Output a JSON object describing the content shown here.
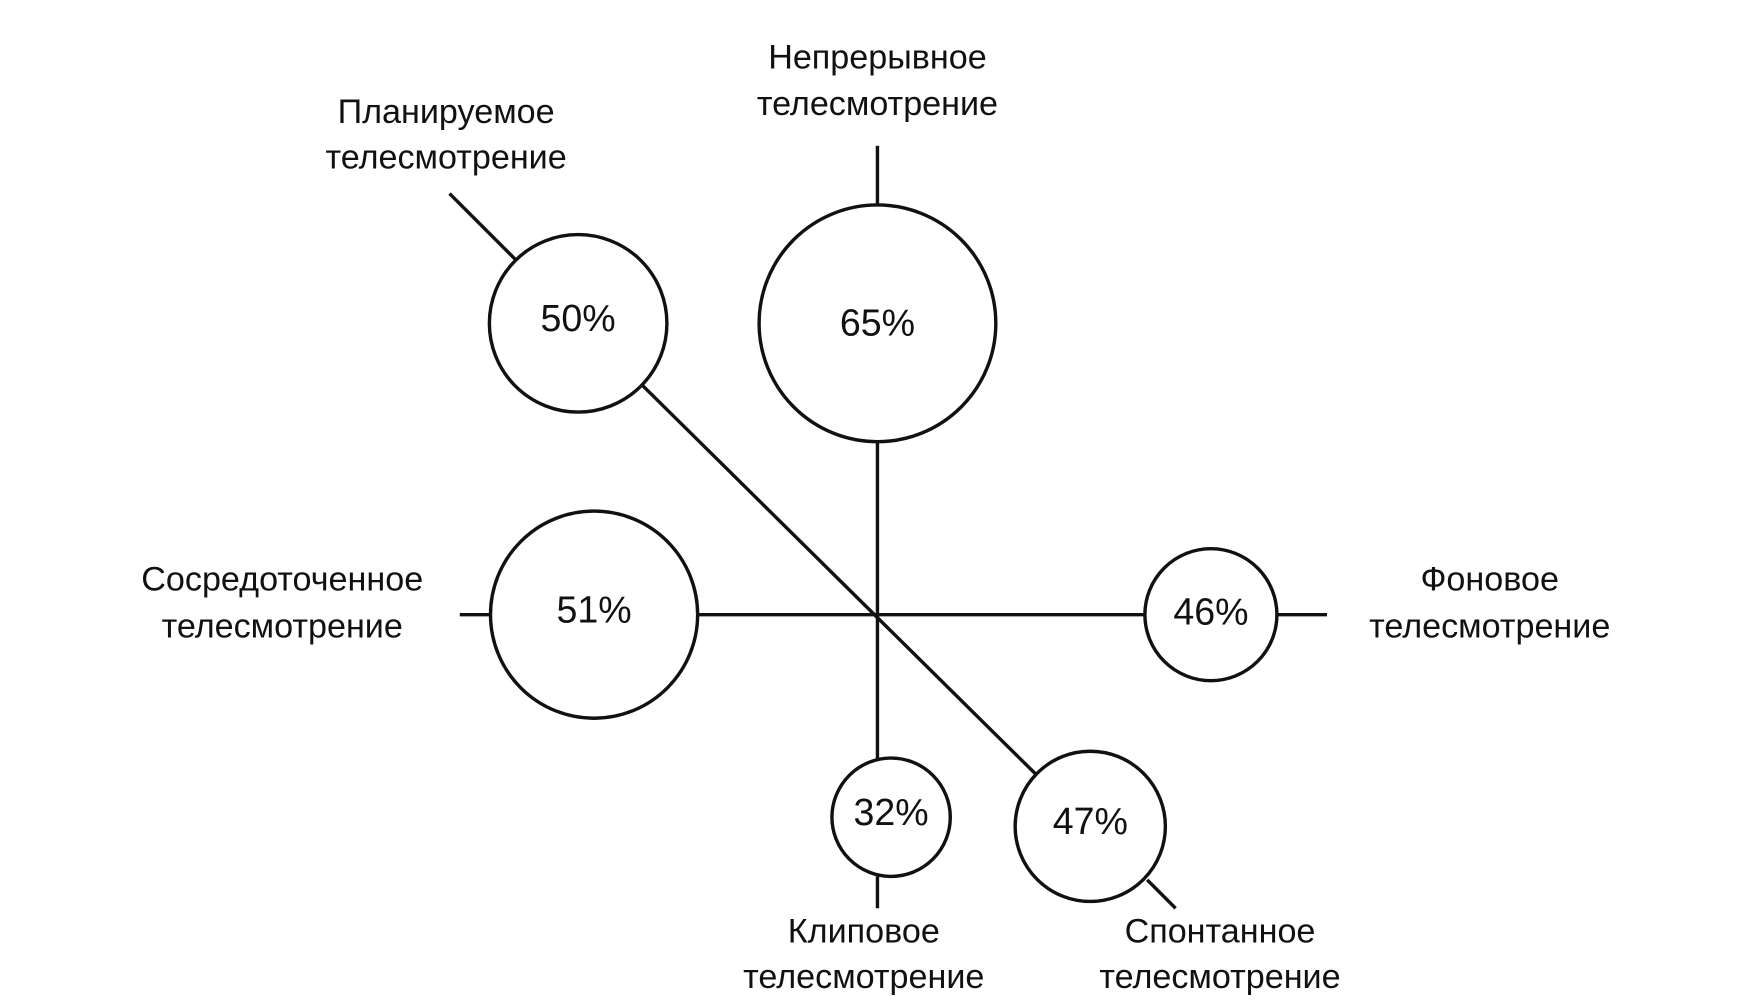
{
  "nodes": [
    {
      "label": [
        "Планируемое",
        "телесмотрение"
      ],
      "value": "50%"
    },
    {
      "label": [
        "Непрерывное",
        "телесмотрение"
      ],
      "value": "65%"
    },
    {
      "label": [
        "Сосредоточенное",
        "телесмотрение"
      ],
      "value": "51%"
    },
    {
      "label": [
        "Фоновое",
        "телесмотрение"
      ],
      "value": "46%"
    },
    {
      "label": [
        "Клиповое",
        "телесмотрение"
      ],
      "value": "32%"
    },
    {
      "label": [
        "Спонтанное",
        "телесмотрение"
      ],
      "value": "47%"
    }
  ]
}
